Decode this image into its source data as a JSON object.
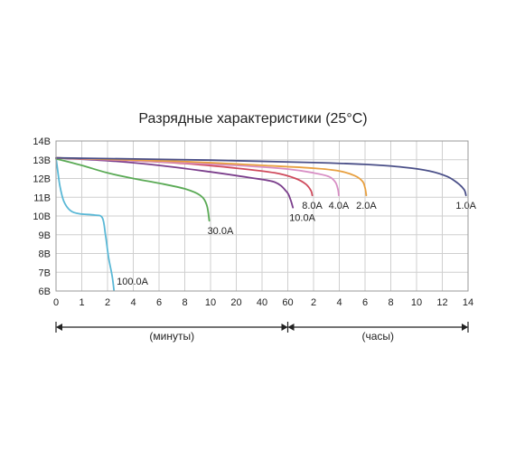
{
  "chart_data": {
    "type": "line",
    "title": "Разрядные характеристики (25°C)",
    "y_ticks": [
      "6В",
      "7В",
      "8В",
      "9В",
      "10В",
      "11В",
      "12В",
      "13В",
      "14В"
    ],
    "ylim": [
      6,
      14
    ],
    "x_ticks": [
      "0",
      "1",
      "2",
      "4",
      "6",
      "8",
      "10",
      "20",
      "40",
      "60",
      "2",
      "4",
      "6",
      "8",
      "10",
      "12",
      "14"
    ],
    "x_segments": [
      {
        "label": "(минуты)",
        "from_tick": 0,
        "to_tick": 9
      },
      {
        "label": "(часы)",
        "from_tick": 9,
        "to_tick": 16
      }
    ],
    "grid": true,
    "series": [
      {
        "name": "100.0A",
        "color": "#5ab8d6",
        "points": [
          [
            0,
            13.1
          ],
          [
            0.05,
            12.6
          ],
          [
            0.15,
            11.6
          ],
          [
            0.3,
            10.8
          ],
          [
            0.55,
            10.3
          ],
          [
            0.9,
            10.12
          ],
          [
            1.5,
            10.05
          ],
          [
            1.8,
            9.9
          ],
          [
            1.92,
            9.0
          ],
          [
            2.04,
            7.8
          ],
          [
            2.18,
            6.8
          ],
          [
            2.25,
            6.05
          ]
        ]
      },
      {
        "name": "30.0A",
        "color": "#5aaa55",
        "points": [
          [
            0,
            13.05
          ],
          [
            1,
            12.7
          ],
          [
            2,
            12.3
          ],
          [
            3,
            12.0
          ],
          [
            4,
            11.75
          ],
          [
            5,
            11.45
          ],
          [
            5.6,
            11.1
          ],
          [
            5.85,
            10.6
          ],
          [
            5.95,
            9.75
          ]
        ]
      },
      {
        "name": "10.0A",
        "color": "#7b3f8c",
        "points": [
          [
            0,
            13.1
          ],
          [
            2,
            12.95
          ],
          [
            4,
            12.7
          ],
          [
            6,
            12.35
          ],
          [
            7.5,
            12.05
          ],
          [
            8.5,
            11.8
          ],
          [
            8.95,
            11.3
          ],
          [
            9.1,
            10.9
          ],
          [
            9.2,
            10.45
          ]
        ]
      },
      {
        "name": "8.0A",
        "color": "#cf4a5c",
        "points": [
          [
            0,
            13.1
          ],
          [
            3,
            12.95
          ],
          [
            5,
            12.8
          ],
          [
            7,
            12.55
          ],
          [
            8.5,
            12.3
          ],
          [
            9.3,
            12.0
          ],
          [
            9.7,
            11.7
          ],
          [
            9.9,
            11.35
          ],
          [
            9.95,
            11.1
          ]
        ]
      },
      {
        "name": "4.0A",
        "color": "#d88fc5",
        "points": [
          [
            0,
            13.1
          ],
          [
            4,
            12.9
          ],
          [
            7,
            12.7
          ],
          [
            9,
            12.5
          ],
          [
            10,
            12.3
          ],
          [
            10.6,
            12.1
          ],
          [
            10.85,
            11.8
          ],
          [
            10.95,
            11.4
          ],
          [
            10.98,
            11.1
          ]
        ]
      },
      {
        "name": "2.0A",
        "color": "#e8a040",
        "points": [
          [
            0,
            13.1
          ],
          [
            5,
            12.9
          ],
          [
            8,
            12.7
          ],
          [
            10,
            12.55
          ],
          [
            11,
            12.4
          ],
          [
            11.6,
            12.15
          ],
          [
            11.9,
            11.85
          ],
          [
            12.0,
            11.5
          ],
          [
            12.05,
            11.1
          ]
        ]
      },
      {
        "name": "1.0A",
        "color": "#4a4f88",
        "points": [
          [
            0,
            13.1
          ],
          [
            6,
            12.98
          ],
          [
            10,
            12.85
          ],
          [
            12,
            12.75
          ],
          [
            13.5,
            12.6
          ],
          [
            14.5,
            12.4
          ],
          [
            15.2,
            12.1
          ],
          [
            15.6,
            11.75
          ],
          [
            15.85,
            11.4
          ],
          [
            15.92,
            11.1
          ]
        ]
      }
    ]
  }
}
